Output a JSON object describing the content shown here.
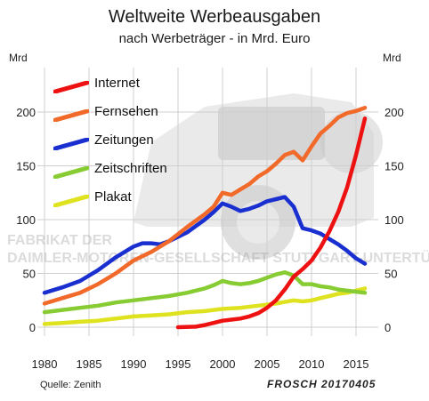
{
  "title": "Weltweite Werbeausgaben",
  "subtitle": "nach Werbeträger - in Mrd. Euro",
  "unit_left": "Mrd",
  "unit_right": "Mrd",
  "source": "Quelle: Zenith",
  "signature": "FROSCH 20170405",
  "background_text": "FABRIKAT DER DAIMLER-MOTOREN-GESELLSCHAFT STUTTGART-UNTERTÜRKHEIM",
  "chart_data": {
    "type": "line",
    "title": "Weltweite Werbeausgaben",
    "subtitle": "nach Werbeträger - in Mrd. Euro",
    "xlabel": "",
    "ylabel": "Mrd",
    "xlim": [
      1980,
      2016
    ],
    "ylim": [
      0,
      200
    ],
    "x_ticks": [
      1980,
      1985,
      1990,
      1995,
      2000,
      2005,
      2010,
      2015
    ],
    "y_ticks": [
      0,
      50,
      100,
      150,
      200
    ],
    "grid": true,
    "legend_position": "top-left",
    "series": [
      {
        "name": "Internet",
        "color": "#ee1111",
        "points": [
          [
            1995,
            0
          ],
          [
            1997,
            0.5
          ],
          [
            1998,
            2
          ],
          [
            1999,
            4
          ],
          [
            2000,
            6
          ],
          [
            2001,
            7
          ],
          [
            2002,
            8
          ],
          [
            2003,
            10
          ],
          [
            2004,
            13
          ],
          [
            2005,
            18
          ],
          [
            2006,
            25
          ],
          [
            2007,
            35
          ],
          [
            2008,
            47
          ],
          [
            2009,
            54
          ],
          [
            2010,
            62
          ],
          [
            2011,
            74
          ],
          [
            2012,
            89
          ],
          [
            2013,
            107
          ],
          [
            2014,
            130
          ],
          [
            2015,
            160
          ],
          [
            2016,
            194
          ]
        ]
      },
      {
        "name": "Fernsehen",
        "color": "#f26a2a",
        "points": [
          [
            1980,
            22
          ],
          [
            1982,
            27
          ],
          [
            1984,
            32
          ],
          [
            1986,
            40
          ],
          [
            1988,
            50
          ],
          [
            1990,
            62
          ],
          [
            1992,
            70
          ],
          [
            1994,
            80
          ],
          [
            1996,
            93
          ],
          [
            1998,
            105
          ],
          [
            1999,
            112
          ],
          [
            2000,
            125
          ],
          [
            2001,
            123
          ],
          [
            2002,
            128
          ],
          [
            2003,
            133
          ],
          [
            2004,
            140
          ],
          [
            2005,
            145
          ],
          [
            2006,
            152
          ],
          [
            2007,
            160
          ],
          [
            2008,
            163
          ],
          [
            2009,
            155
          ],
          [
            2010,
            168
          ],
          [
            2011,
            180
          ],
          [
            2012,
            187
          ],
          [
            2013,
            195
          ],
          [
            2014,
            199
          ],
          [
            2015,
            201
          ],
          [
            2016,
            204
          ]
        ]
      },
      {
        "name": "Zeitungen",
        "color": "#1a2fd0",
        "points": [
          [
            1980,
            32
          ],
          [
            1982,
            37
          ],
          [
            1984,
            43
          ],
          [
            1986,
            53
          ],
          [
            1988,
            65
          ],
          [
            1990,
            75
          ],
          [
            1991,
            78
          ],
          [
            1992,
            78
          ],
          [
            1993,
            77
          ],
          [
            1994,
            80
          ],
          [
            1996,
            88
          ],
          [
            1998,
            100
          ],
          [
            1999,
            107
          ],
          [
            2000,
            115
          ],
          [
            2001,
            112
          ],
          [
            2002,
            108
          ],
          [
            2003,
            110
          ],
          [
            2004,
            113
          ],
          [
            2005,
            117
          ],
          [
            2006,
            119
          ],
          [
            2007,
            121
          ],
          [
            2008,
            112
          ],
          [
            2009,
            92
          ],
          [
            2010,
            90
          ],
          [
            2011,
            87
          ],
          [
            2012,
            82
          ],
          [
            2013,
            77
          ],
          [
            2014,
            71
          ],
          [
            2015,
            64
          ],
          [
            2016,
            59
          ]
        ]
      },
      {
        "name": "Zeitschriften",
        "color": "#88cc33",
        "points": [
          [
            1980,
            14
          ],
          [
            1982,
            16
          ],
          [
            1984,
            18
          ],
          [
            1986,
            20
          ],
          [
            1988,
            23
          ],
          [
            1990,
            25
          ],
          [
            1992,
            27
          ],
          [
            1994,
            29
          ],
          [
            1996,
            32
          ],
          [
            1998,
            36
          ],
          [
            1999,
            39
          ],
          [
            2000,
            43
          ],
          [
            2001,
            41
          ],
          [
            2002,
            40
          ],
          [
            2003,
            41
          ],
          [
            2004,
            43
          ],
          [
            2005,
            46
          ],
          [
            2006,
            49
          ],
          [
            2007,
            51
          ],
          [
            2008,
            48
          ],
          [
            2009,
            40
          ],
          [
            2010,
            40
          ],
          [
            2011,
            38
          ],
          [
            2012,
            37
          ],
          [
            2013,
            35
          ],
          [
            2014,
            34
          ],
          [
            2015,
            33
          ],
          [
            2016,
            32
          ]
        ]
      },
      {
        "name": "Plakat",
        "color": "#dfe21f",
        "points": [
          [
            1980,
            3
          ],
          [
            1982,
            4
          ],
          [
            1984,
            5
          ],
          [
            1986,
            6
          ],
          [
            1988,
            8
          ],
          [
            1990,
            10
          ],
          [
            1992,
            11
          ],
          [
            1994,
            12
          ],
          [
            1996,
            14
          ],
          [
            1998,
            15
          ],
          [
            2000,
            17
          ],
          [
            2002,
            18
          ],
          [
            2004,
            20
          ],
          [
            2006,
            22
          ],
          [
            2008,
            25
          ],
          [
            2009,
            24
          ],
          [
            2010,
            25
          ],
          [
            2011,
            27
          ],
          [
            2012,
            29
          ],
          [
            2013,
            31
          ],
          [
            2014,
            32
          ],
          [
            2015,
            34
          ],
          [
            2016,
            36
          ]
        ]
      }
    ]
  }
}
